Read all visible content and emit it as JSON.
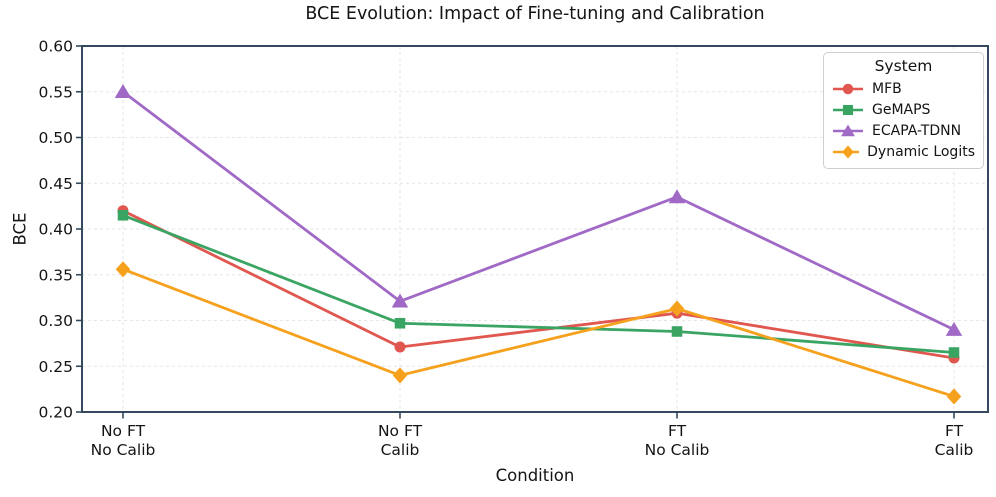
{
  "chart_data": {
    "type": "line",
    "title": "BCE Evolution: Impact of Fine-tuning and Calibration",
    "xlabel": "Condition",
    "ylabel": "BCE",
    "legend_title": "System",
    "legend_position": "upper right",
    "grid": "dashed both axes",
    "ylim": [
      0.2,
      0.6
    ],
    "yticks": [
      "0.20",
      "0.25",
      "0.30",
      "0.35",
      "0.40",
      "0.45",
      "0.50",
      "0.55",
      "0.60"
    ],
    "categories": [
      "No FT\nNo Calib",
      "No FT\nCalib",
      "FT\nNo Calib",
      "FT\nCalib"
    ],
    "series": [
      {
        "name": "MFB",
        "marker": "circle",
        "color": "#e0574f",
        "values": [
          0.42,
          0.271,
          0.308,
          0.259
        ]
      },
      {
        "name": "GeMAPS",
        "marker": "square",
        "color": "#3aa563",
        "values": [
          0.415,
          0.297,
          0.288,
          0.265
        ]
      },
      {
        "name": "ECAPA-TDNN",
        "marker": "triangle",
        "color": "#a069c6",
        "values": [
          0.55,
          0.321,
          0.435,
          0.29
        ]
      },
      {
        "name": "Dynamic Logits",
        "marker": "diamond",
        "color": "#f5a11d",
        "values": [
          0.356,
          0.24,
          0.313,
          0.217
        ]
      }
    ]
  },
  "colors": {
    "spine": "#34495e",
    "grid": "#e6e6e6",
    "text": "#141414",
    "legend_border": "#cfcfcf",
    "background": "#ffffff"
  }
}
